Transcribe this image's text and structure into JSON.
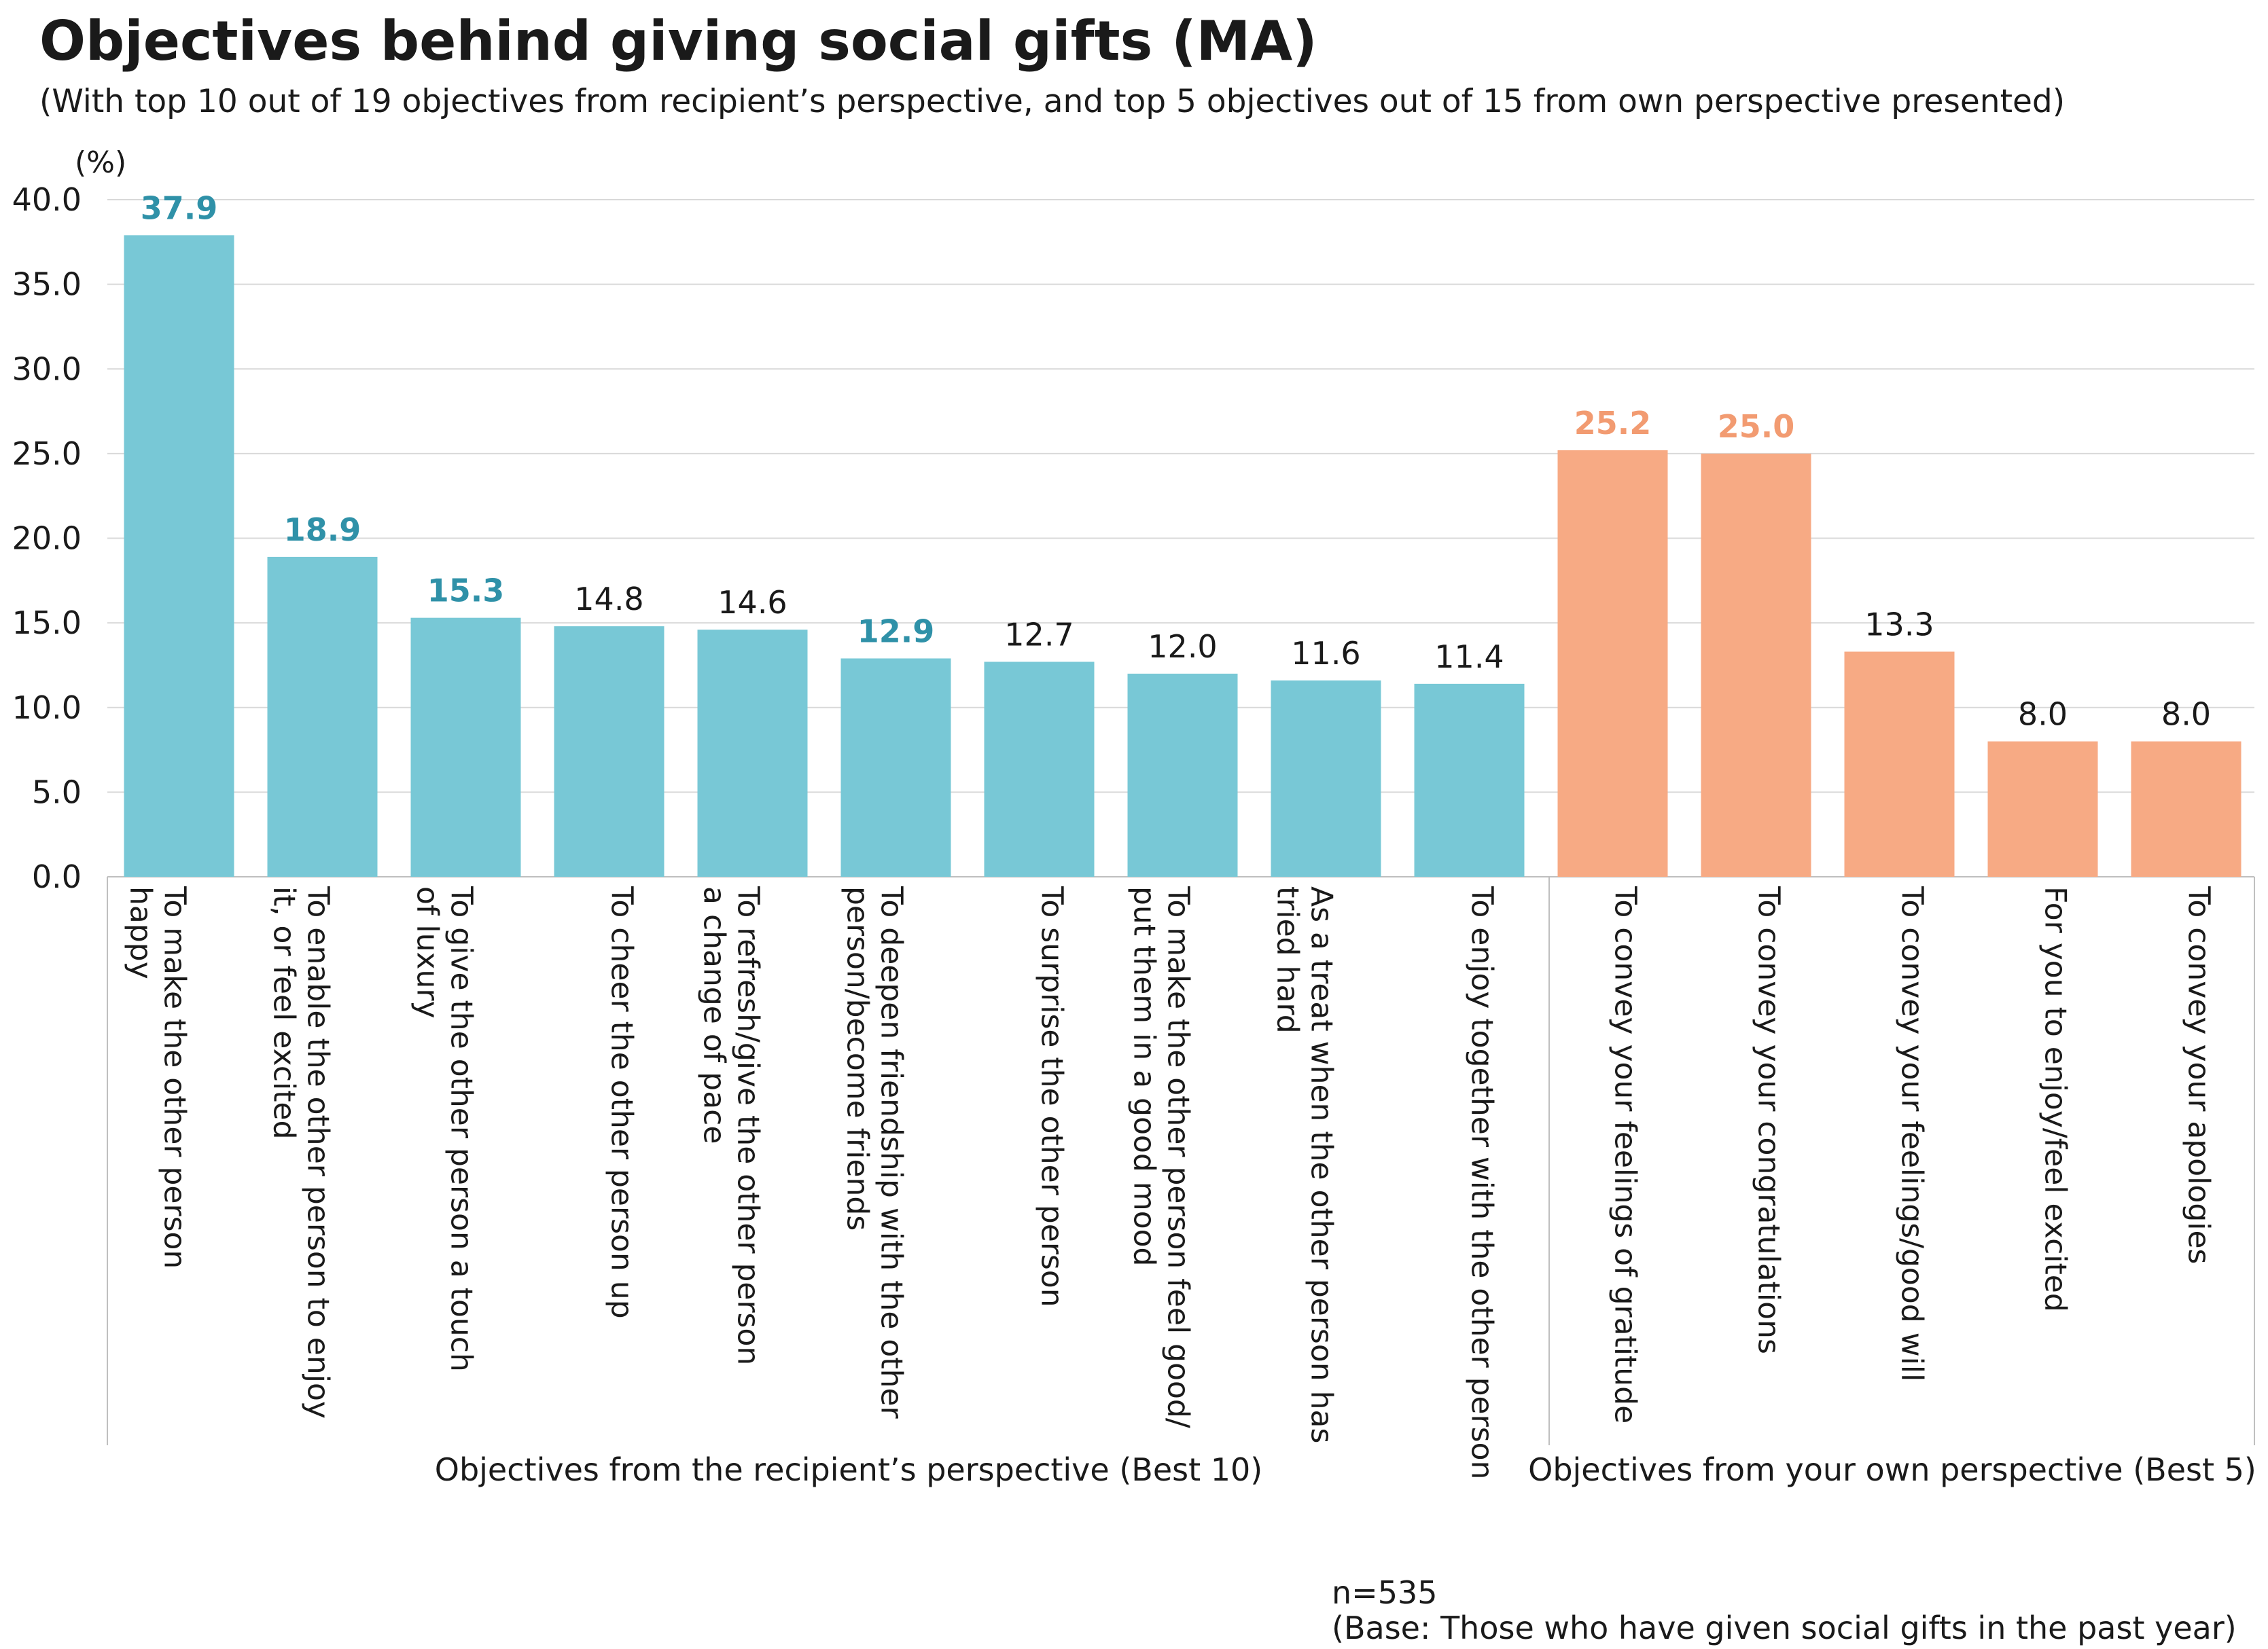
{
  "title": "Objectives behind giving social gifts (MA)",
  "subtitle": "(With top 10 out of 19 objectives from recipient’s perspective, and top 5 objectives out of 15 from own perspective presented)",
  "unit_label": "(%)",
  "note_n": "n=535",
  "note_base": "(Base: Those who have given social gifts in the past year)",
  "colors": {
    "recipient_bar": "#78c8d6",
    "own_bar": "#f7aa84",
    "highlight_recipient_label": "#2f91a8",
    "highlight_own_label": "#f29b71",
    "grid": "#d9d9d9",
    "axis": "#bfbfbf"
  },
  "chart_data": {
    "type": "bar",
    "ylim": [
      0,
      40
    ],
    "yticks": [
      0,
      5,
      10,
      15,
      20,
      25,
      30,
      35,
      40
    ],
    "ytick_labels": [
      "0.0",
      "5.0",
      "10.0",
      "15.0",
      "20.0",
      "25.0",
      "30.0",
      "35.0",
      "40.0"
    ],
    "grid": true,
    "groups": [
      {
        "name": "Objectives from the recipient’s perspective (Best 10)",
        "bars": [
          {
            "label": [
              "To make the other person",
              "happy"
            ],
            "value": 37.9,
            "value_label": "37.9",
            "highlight": true
          },
          {
            "label": [
              "To enable the other person to enjoy",
              "it, or feel excited"
            ],
            "value": 18.9,
            "value_label": "18.9",
            "highlight": true
          },
          {
            "label": [
              "To give the other person a touch",
              "of luxury"
            ],
            "value": 15.3,
            "value_label": "15.3",
            "highlight": true
          },
          {
            "label": [
              "To cheer the other person up"
            ],
            "value": 14.8,
            "value_label": "14.8",
            "highlight": false
          },
          {
            "label": [
              "To refresh/give the other person",
              "a change of pace"
            ],
            "value": 14.6,
            "value_label": "14.6",
            "highlight": false
          },
          {
            "label": [
              "To deepen friendship with the other",
              "person/become friends"
            ],
            "value": 12.9,
            "value_label": "12.9",
            "highlight": true
          },
          {
            "label": [
              "To surprise the other person"
            ],
            "value": 12.7,
            "value_label": "12.7",
            "highlight": false
          },
          {
            "label": [
              "To make the other person feel good/",
              "put them in a good mood"
            ],
            "value": 12.0,
            "value_label": "12.0",
            "highlight": false
          },
          {
            "label": [
              "As a treat when the other person has",
              "tried hard"
            ],
            "value": 11.6,
            "value_label": "11.6",
            "highlight": false
          },
          {
            "label": [
              "To enjoy together with the other person"
            ],
            "value": 11.4,
            "value_label": "11.4",
            "highlight": false
          }
        ]
      },
      {
        "name": "Objectives from your own perspective (Best 5)",
        "bars": [
          {
            "label": [
              "To convey your feelings of gratitude"
            ],
            "value": 25.2,
            "value_label": "25.2",
            "highlight": true
          },
          {
            "label": [
              "To convey your congratulations"
            ],
            "value": 25.0,
            "value_label": "25.0",
            "highlight": true
          },
          {
            "label": [
              "To convey your feelings/good will"
            ],
            "value": 13.3,
            "value_label": "13.3",
            "highlight": false
          },
          {
            "label": [
              "For you to enjoy/feel excited"
            ],
            "value": 8.0,
            "value_label": "8.0",
            "highlight": false
          },
          {
            "label": [
              "To convey your apologies"
            ],
            "value": 8.0,
            "value_label": "8.0",
            "highlight": false
          }
        ]
      }
    ]
  }
}
